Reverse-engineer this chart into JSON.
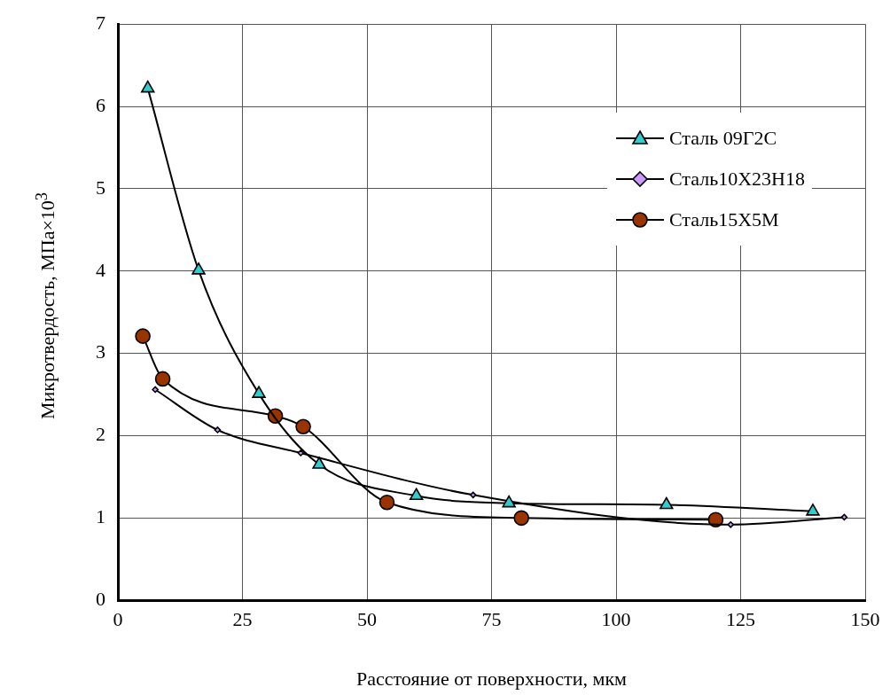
{
  "chart_data": {
    "type": "line",
    "xlabel": "Расстояние от поверхности, мкм",
    "ylabel": "Микротвердость, МПа×10$^{3}$",
    "xlim": [
      0,
      150
    ],
    "xticks": [
      0,
      25,
      50,
      75,
      100,
      125,
      150
    ],
    "ylim": [
      0,
      7
    ],
    "yticks": [
      0,
      1,
      2,
      3,
      4,
      5,
      6,
      7
    ],
    "grid": true,
    "legend": "top right",
    "series": [
      {
        "name": "Сталь 09Г2С",
        "color": "#33cccc",
        "marker": "triangle",
        "x": [
          6,
          16.2,
          28.3,
          40.4,
          59.9,
          78.5,
          110.1,
          139.5
        ],
        "values": [
          6.22,
          4.01,
          2.51,
          1.65,
          1.27,
          1.18,
          1.16,
          1.08
        ]
      },
      {
        "name": "Сталь10Х23Н18",
        "color": "#cc99ff",
        "marker": "diamond",
        "x": [
          7.5,
          20,
          36.7,
          71.3,
          123,
          145.8
        ],
        "values": [
          2.56,
          2.07,
          1.79,
          1.28,
          0.92,
          1.01
        ]
      },
      {
        "name": "Сталь15Х5М",
        "color": "#993300",
        "marker": "circle",
        "x": [
          5,
          9,
          31.6,
          37.2,
          54,
          81,
          120
        ],
        "values": [
          3.21,
          2.69,
          2.24,
          2.11,
          1.19,
          1.0,
          0.98
        ]
      }
    ]
  }
}
